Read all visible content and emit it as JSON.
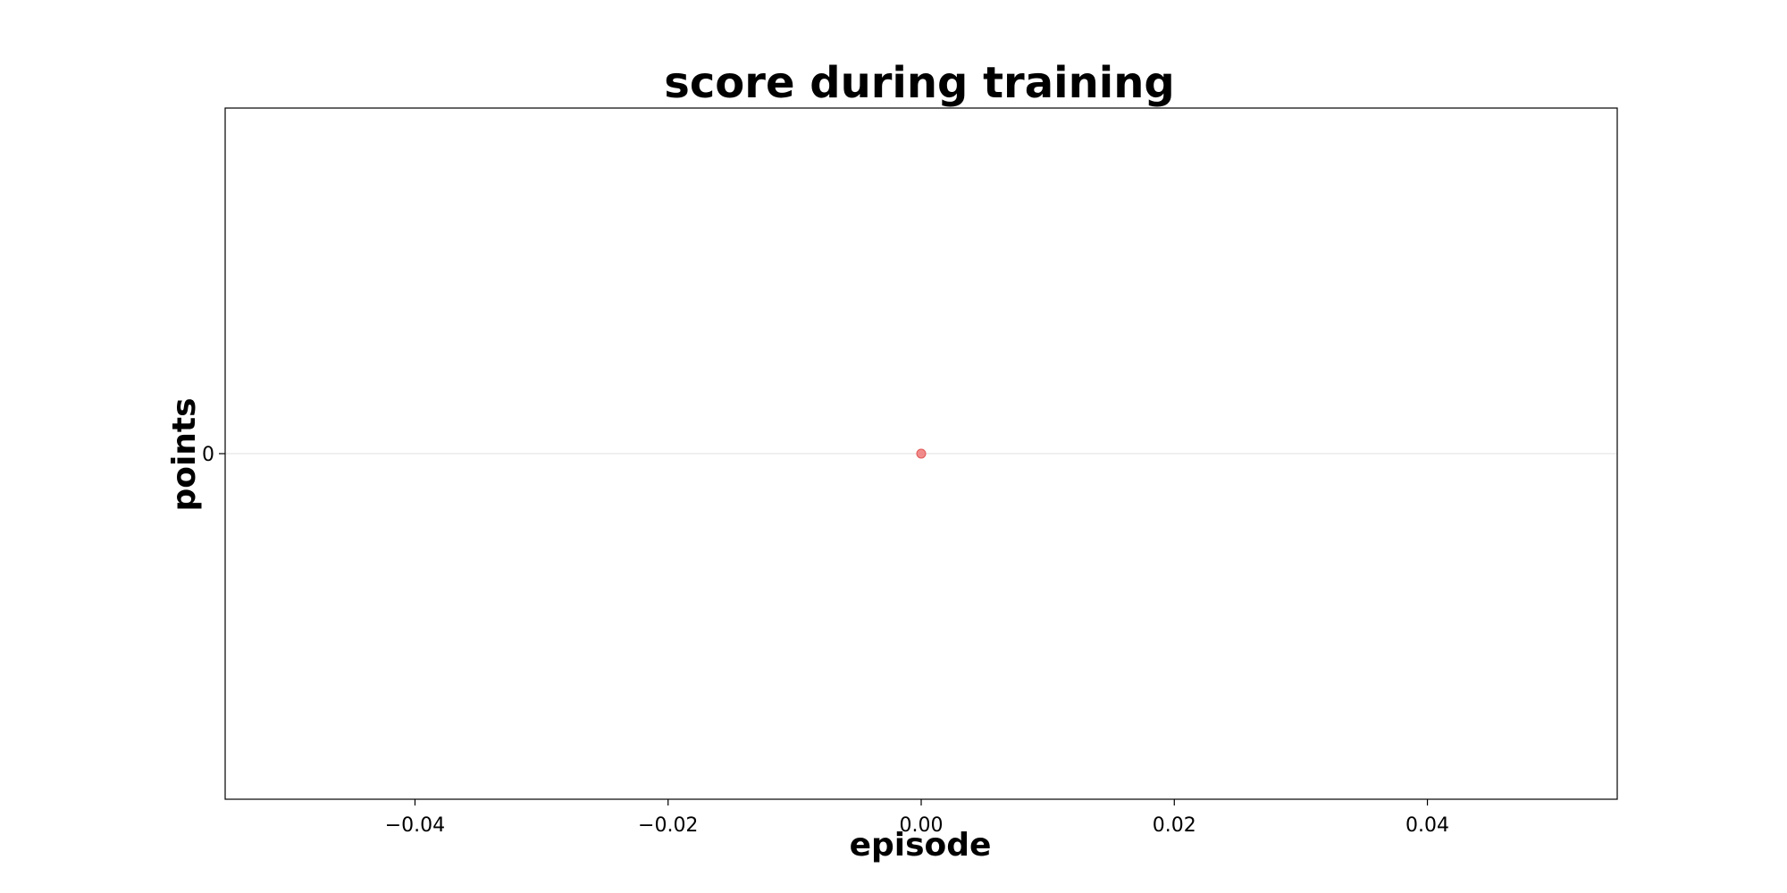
{
  "chart_data": {
    "type": "scatter",
    "title": "score during training",
    "xlabel": "episode",
    "ylabel": "points",
    "xlim": [
      -0.055,
      0.055
    ],
    "ylim": [
      -0.055,
      0.055
    ],
    "xticks": [
      -0.04,
      -0.02,
      0.0,
      0.02,
      0.04
    ],
    "xtick_labels": [
      "−0.04",
      "−0.02",
      "0.00",
      "0.02",
      "0.04"
    ],
    "yticks": [
      0
    ],
    "ytick_labels": [
      "0"
    ],
    "grid": "horizontal at y=0",
    "series": [
      {
        "points": [
          {
            "x": 0.0,
            "y": 0
          }
        ],
        "color": "#f07878"
      }
    ]
  }
}
